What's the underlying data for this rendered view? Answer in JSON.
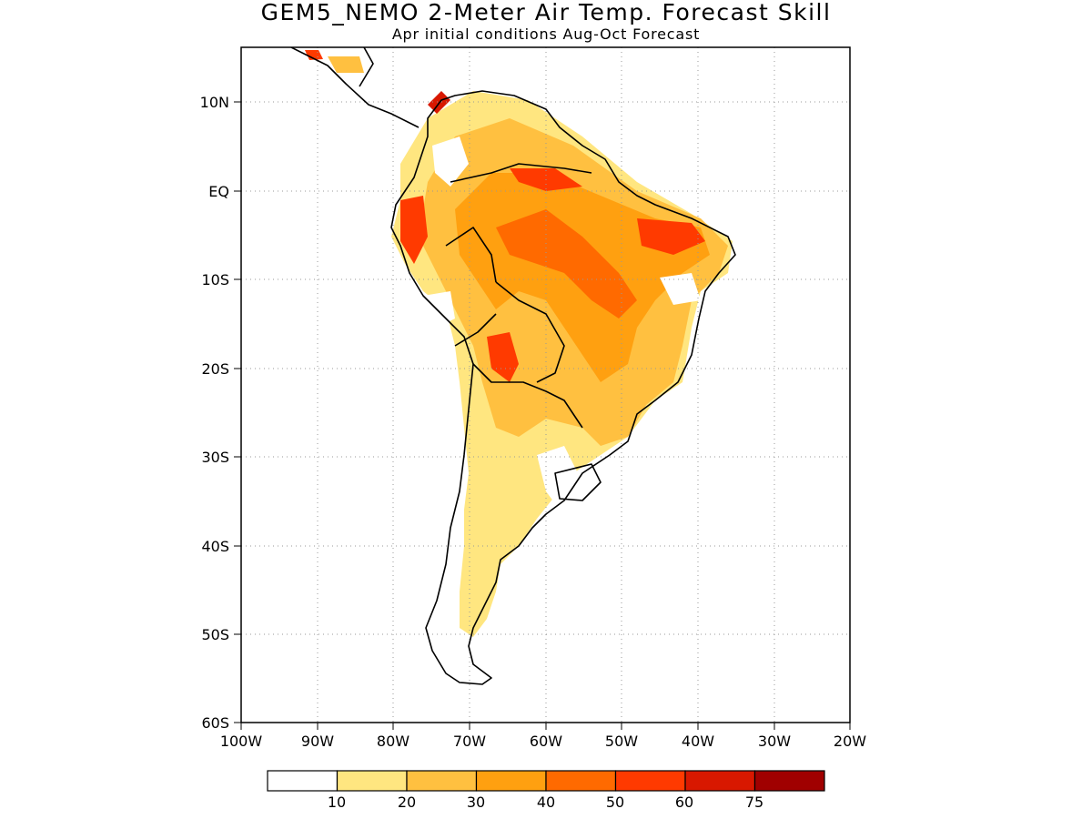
{
  "title": "GEM5_NEMO 2-Meter Air Temp. Forecast Skill",
  "subtitle": "Apr initial conditions  Aug-Oct Forecast",
  "lat_ticks": [
    "10N",
    "EQ",
    "10S",
    "20S",
    "30S",
    "40S",
    "50S",
    "60S"
  ],
  "lon_ticks": [
    "100W",
    "90W",
    "80W",
    "70W",
    "60W",
    "50W",
    "40W",
    "30W",
    "20W"
  ],
  "colorbar": {
    "labels": [
      "10",
      "20",
      "30",
      "40",
      "50",
      "60",
      "75"
    ],
    "colors": [
      "#ffffff",
      "#ffe680",
      "#ffc040",
      "#ffa010",
      "#ff6a00",
      "#ff3a00",
      "#d81800",
      "#a00000"
    ]
  },
  "map": {
    "region": "South America",
    "lon_range": [
      "100W",
      "20W"
    ],
    "lat_range": [
      "60S",
      "15N"
    ],
    "grid": "dotted"
  }
}
